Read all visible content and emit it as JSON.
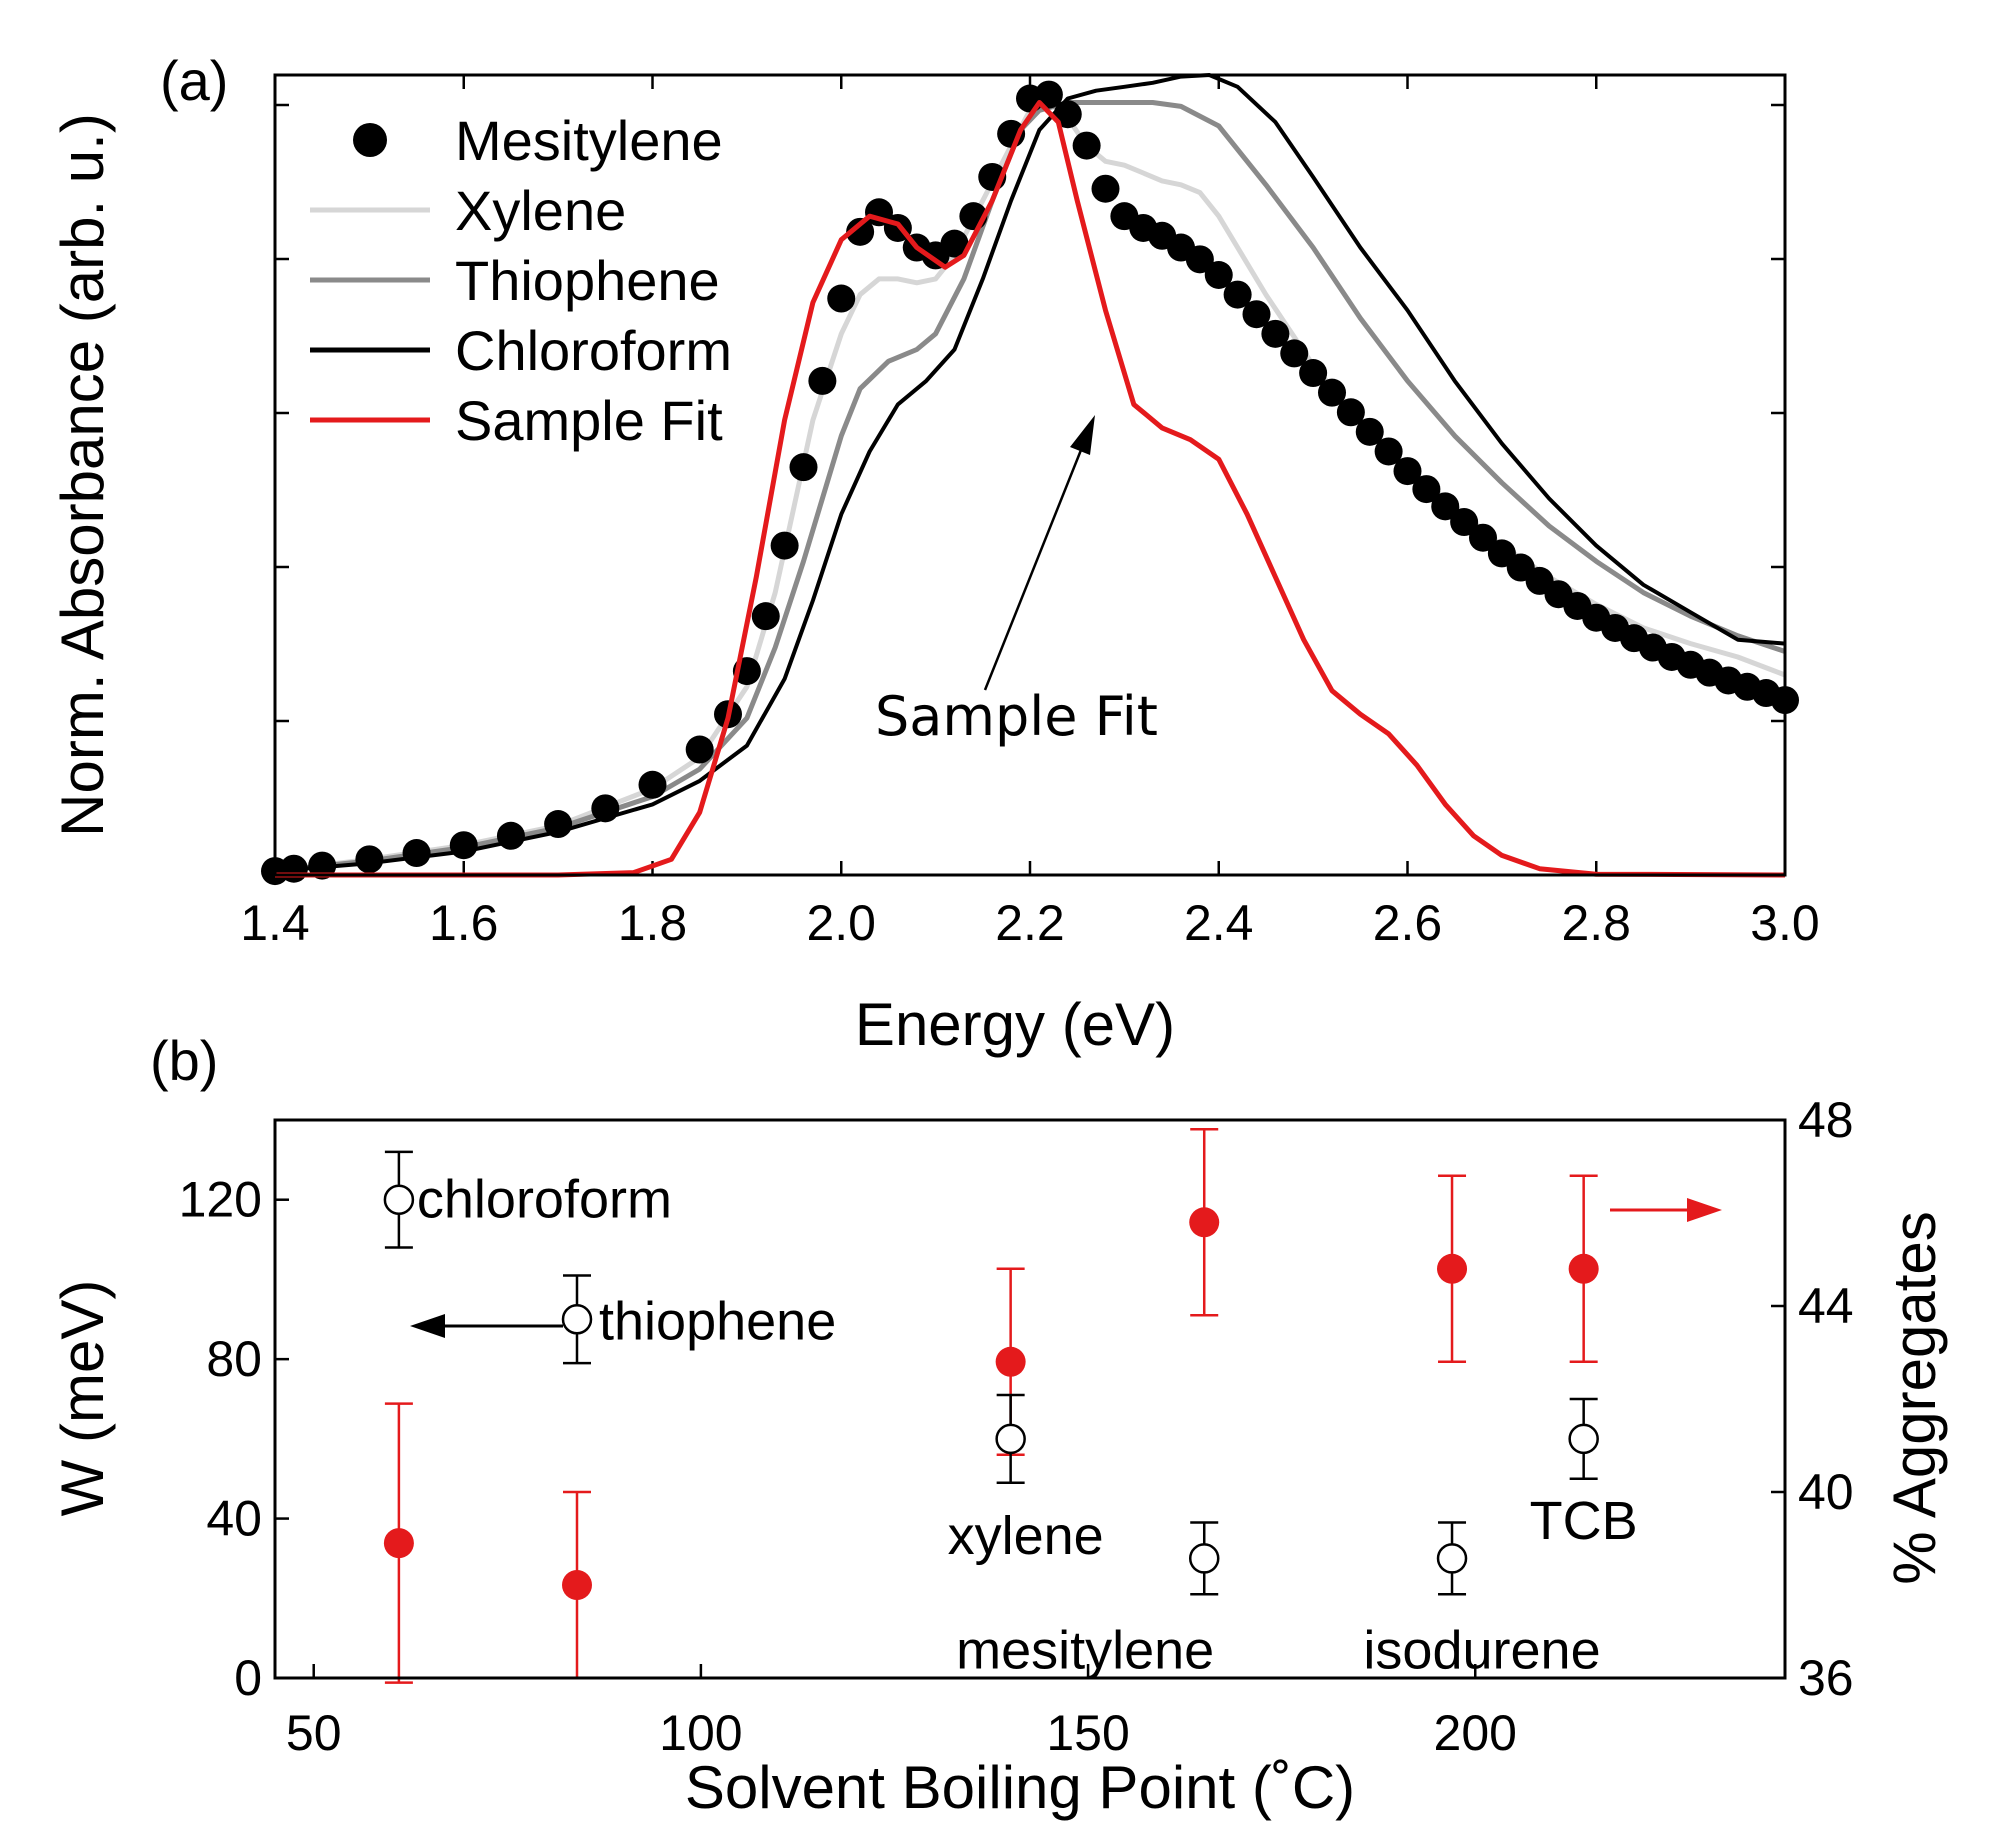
{
  "chart_data": [
    {
      "panel": "(a)",
      "type": "line",
      "xlabel": "Energy (eV)",
      "ylabel": "Norm. Absorbance (arb. u.)",
      "xlim": [
        1.4,
        3.0
      ],
      "ylim": [
        0,
        1.02
      ],
      "xticks": [
        "1.4",
        "1.6",
        "1.8",
        "2.0",
        "2.2",
        "2.4",
        "2.6",
        "2.8",
        "3.0"
      ],
      "legend_position": "top-left",
      "annotation": "Sample Fit",
      "series": [
        {
          "name": "Mesitylene",
          "style": "markers",
          "color": "#000000",
          "points": [
            [
              1.4,
              0.005
            ],
            [
              1.42,
              0.008
            ],
            [
              1.45,
              0.012
            ],
            [
              1.5,
              0.02
            ],
            [
              1.55,
              0.028
            ],
            [
              1.6,
              0.038
            ],
            [
              1.65,
              0.05
            ],
            [
              1.7,
              0.065
            ],
            [
              1.75,
              0.085
            ],
            [
              1.8,
              0.115
            ],
            [
              1.85,
              0.16
            ],
            [
              1.88,
              0.205
            ],
            [
              1.9,
              0.26
            ],
            [
              1.92,
              0.33
            ],
            [
              1.94,
              0.42
            ],
            [
              1.96,
              0.52
            ],
            [
              1.98,
              0.63
            ],
            [
              2.0,
              0.735
            ],
            [
              2.02,
              0.82
            ],
            [
              2.04,
              0.845
            ],
            [
              2.06,
              0.825
            ],
            [
              2.08,
              0.8
            ],
            [
              2.1,
              0.79
            ],
            [
              2.12,
              0.805
            ],
            [
              2.14,
              0.84
            ],
            [
              2.16,
              0.89
            ],
            [
              2.18,
              0.945
            ],
            [
              2.2,
              0.99
            ],
            [
              2.22,
              0.995
            ],
            [
              2.24,
              0.97
            ],
            [
              2.26,
              0.93
            ],
            [
              2.28,
              0.875
            ],
            [
              2.3,
              0.84
            ],
            [
              2.32,
              0.825
            ],
            [
              2.34,
              0.815
            ],
            [
              2.36,
              0.8
            ],
            [
              2.38,
              0.785
            ],
            [
              2.4,
              0.765
            ],
            [
              2.42,
              0.74
            ],
            [
              2.44,
              0.715
            ],
            [
              2.46,
              0.69
            ],
            [
              2.48,
              0.665
            ],
            [
              2.5,
              0.64
            ],
            [
              2.52,
              0.615
            ],
            [
              2.54,
              0.59
            ],
            [
              2.56,
              0.565
            ],
            [
              2.58,
              0.54
            ],
            [
              2.6,
              0.515
            ],
            [
              2.62,
              0.492
            ],
            [
              2.64,
              0.47
            ],
            [
              2.66,
              0.45
            ],
            [
              2.68,
              0.43
            ],
            [
              2.7,
              0.41
            ],
            [
              2.72,
              0.392
            ],
            [
              2.74,
              0.375
            ],
            [
              2.76,
              0.358
            ],
            [
              2.78,
              0.343
            ],
            [
              2.8,
              0.328
            ],
            [
              2.82,
              0.315
            ],
            [
              2.84,
              0.302
            ],
            [
              2.86,
              0.29
            ],
            [
              2.88,
              0.278
            ],
            [
              2.9,
              0.268
            ],
            [
              2.92,
              0.258
            ],
            [
              2.94,
              0.248
            ],
            [
              2.96,
              0.24
            ],
            [
              2.98,
              0.232
            ],
            [
              3.0,
              0.223
            ]
          ]
        },
        {
          "name": "Xylene",
          "style": "line",
          "color": "#d6d6d6",
          "points": [
            [
              1.4,
              0.005
            ],
            [
              1.5,
              0.02
            ],
            [
              1.6,
              0.038
            ],
            [
              1.7,
              0.063
            ],
            [
              1.8,
              0.11
            ],
            [
              1.85,
              0.15
            ],
            [
              1.9,
              0.24
            ],
            [
              1.93,
              0.36
            ],
            [
              1.95,
              0.47
            ],
            [
              1.97,
              0.58
            ],
            [
              2.0,
              0.69
            ],
            [
              2.02,
              0.74
            ],
            [
              2.04,
              0.76
            ],
            [
              2.06,
              0.76
            ],
            [
              2.08,
              0.755
            ],
            [
              2.1,
              0.76
            ],
            [
              2.12,
              0.79
            ],
            [
              2.15,
              0.86
            ],
            [
              2.18,
              0.93
            ],
            [
              2.2,
              0.975
            ],
            [
              2.22,
              0.985
            ],
            [
              2.24,
              0.965
            ],
            [
              2.26,
              0.93
            ],
            [
              2.28,
              0.91
            ],
            [
              2.3,
              0.905
            ],
            [
              2.32,
              0.895
            ],
            [
              2.34,
              0.885
            ],
            [
              2.36,
              0.88
            ],
            [
              2.38,
              0.87
            ],
            [
              2.4,
              0.84
            ],
            [
              2.45,
              0.74
            ],
            [
              2.5,
              0.65
            ],
            [
              2.55,
              0.58
            ],
            [
              2.6,
              0.52
            ],
            [
              2.65,
              0.47
            ],
            [
              2.7,
              0.42
            ],
            [
              2.75,
              0.38
            ],
            [
              2.8,
              0.345
            ],
            [
              2.85,
              0.315
            ],
            [
              2.9,
              0.295
            ],
            [
              2.95,
              0.278
            ],
            [
              3.0,
              0.255
            ]
          ]
        },
        {
          "name": "Thiophene",
          "style": "line",
          "color": "#8a8a8a",
          "points": [
            [
              1.4,
              0.005
            ],
            [
              1.5,
              0.018
            ],
            [
              1.6,
              0.035
            ],
            [
              1.7,
              0.06
            ],
            [
              1.8,
              0.1
            ],
            [
              1.85,
              0.135
            ],
            [
              1.9,
              0.2
            ],
            [
              1.93,
              0.29
            ],
            [
              1.96,
              0.4
            ],
            [
              1.98,
              0.48
            ],
            [
              2.0,
              0.56
            ],
            [
              2.02,
              0.62
            ],
            [
              2.05,
              0.655
            ],
            [
              2.08,
              0.67
            ],
            [
              2.1,
              0.69
            ],
            [
              2.13,
              0.76
            ],
            [
              2.16,
              0.86
            ],
            [
              2.19,
              0.95
            ],
            [
              2.21,
              0.975
            ],
            [
              2.24,
              0.985
            ],
            [
              2.27,
              0.985
            ],
            [
              2.3,
              0.985
            ],
            [
              2.33,
              0.985
            ],
            [
              2.36,
              0.98
            ],
            [
              2.4,
              0.955
            ],
            [
              2.45,
              0.88
            ],
            [
              2.5,
              0.8
            ],
            [
              2.55,
              0.71
            ],
            [
              2.6,
              0.63
            ],
            [
              2.65,
              0.56
            ],
            [
              2.7,
              0.5
            ],
            [
              2.75,
              0.445
            ],
            [
              2.8,
              0.4
            ],
            [
              2.85,
              0.36
            ],
            [
              2.9,
              0.33
            ],
            [
              2.95,
              0.305
            ],
            [
              3.0,
              0.285
            ]
          ]
        },
        {
          "name": "Chloroform",
          "style": "line",
          "color": "#000000",
          "points": [
            [
              1.4,
              0.005
            ],
            [
              1.5,
              0.015
            ],
            [
              1.6,
              0.03
            ],
            [
              1.7,
              0.055
            ],
            [
              1.8,
              0.09
            ],
            [
              1.85,
              0.12
            ],
            [
              1.9,
              0.165
            ],
            [
              1.94,
              0.25
            ],
            [
              1.97,
              0.35
            ],
            [
              2.0,
              0.46
            ],
            [
              2.03,
              0.54
            ],
            [
              2.06,
              0.6
            ],
            [
              2.09,
              0.63
            ],
            [
              2.12,
              0.67
            ],
            [
              2.15,
              0.76
            ],
            [
              2.18,
              0.86
            ],
            [
              2.21,
              0.95
            ],
            [
              2.24,
              0.99
            ],
            [
              2.27,
              1.0
            ],
            [
              2.3,
              1.005
            ],
            [
              2.33,
              1.01
            ],
            [
              2.36,
              1.018
            ],
            [
              2.39,
              1.02
            ],
            [
              2.42,
              1.005
            ],
            [
              2.46,
              0.96
            ],
            [
              2.5,
              0.89
            ],
            [
              2.55,
              0.8
            ],
            [
              2.6,
              0.72
            ],
            [
              2.65,
              0.63
            ],
            [
              2.7,
              0.55
            ],
            [
              2.75,
              0.48
            ],
            [
              2.8,
              0.42
            ],
            [
              2.85,
              0.37
            ],
            [
              2.9,
              0.335
            ],
            [
              2.95,
              0.3
            ],
            [
              3.0,
              0.295
            ]
          ]
        },
        {
          "name": "Sample Fit",
          "style": "line",
          "color": "#e41a1c",
          "points": [
            [
              1.4,
              0.0
            ],
            [
              1.7,
              0.0
            ],
            [
              1.78,
              0.003
            ],
            [
              1.82,
              0.02
            ],
            [
              1.85,
              0.08
            ],
            [
              1.88,
              0.2
            ],
            [
              1.91,
              0.38
            ],
            [
              1.94,
              0.58
            ],
            [
              1.97,
              0.73
            ],
            [
              2.0,
              0.81
            ],
            [
              2.03,
              0.84
            ],
            [
              2.06,
              0.83
            ],
            [
              2.08,
              0.8
            ],
            [
              2.11,
              0.775
            ],
            [
              2.13,
              0.79
            ],
            [
              2.16,
              0.86
            ],
            [
              2.19,
              0.95
            ],
            [
              2.21,
              0.985
            ],
            [
              2.23,
              0.96
            ],
            [
              2.25,
              0.86
            ],
            [
              2.28,
              0.72
            ],
            [
              2.31,
              0.6
            ],
            [
              2.34,
              0.57
            ],
            [
              2.37,
              0.555
            ],
            [
              2.4,
              0.53
            ],
            [
              2.43,
              0.46
            ],
            [
              2.46,
              0.38
            ],
            [
              2.49,
              0.3
            ],
            [
              2.52,
              0.235
            ],
            [
              2.55,
              0.205
            ],
            [
              2.58,
              0.18
            ],
            [
              2.61,
              0.14
            ],
            [
              2.64,
              0.09
            ],
            [
              2.67,
              0.05
            ],
            [
              2.7,
              0.025
            ],
            [
              2.74,
              0.008
            ],
            [
              2.8,
              0.001
            ],
            [
              3.0,
              0.0
            ]
          ]
        }
      ]
    },
    {
      "panel": "(b)",
      "type": "scatter",
      "xlabel": "Solvent Boiling Point (˚C)",
      "ylabel_left": "W (meV)",
      "ylabel_right": "% Aggregates",
      "xlim": [
        45,
        240
      ],
      "ylim_left": [
        0,
        140
      ],
      "ylim_right": [
        36,
        48
      ],
      "xticks": [
        "50",
        "100",
        "150",
        "200"
      ],
      "yticks_left": [
        "0",
        "40",
        "80",
        "120"
      ],
      "yticks_right": [
        "36",
        "40",
        "44",
        "48"
      ],
      "series": [
        {
          "name": "W",
          "axis": "left",
          "marker": "open-circle",
          "color": "#000000",
          "points": [
            {
              "label": "chloroform",
              "x": 61,
              "y": 120,
              "err": 12
            },
            {
              "label": "thiophene",
              "x": 84,
              "y": 90,
              "err": 11
            },
            {
              "label": "xylene",
              "x": 140,
              "y": 60,
              "err": 11
            },
            {
              "label": "mesitylene",
              "x": 165,
              "y": 30,
              "err": 9
            },
            {
              "label": "isodurene",
              "x": 197,
              "y": 30,
              "err": 9
            },
            {
              "label": "TCB",
              "x": 214,
              "y": 60,
              "err": 10
            }
          ]
        },
        {
          "name": "% Aggregates",
          "axis": "right",
          "marker": "filled-circle",
          "color": "#e41a1c",
          "points": [
            {
              "x": 61,
              "y": 38.9,
              "err": 3.0
            },
            {
              "x": 84,
              "y": 38.0,
              "err": 2.0
            },
            {
              "x": 140,
              "y": 42.8,
              "err": 2.0
            },
            {
              "x": 165,
              "y": 45.8,
              "err": 2.0
            },
            {
              "x": 197,
              "y": 44.8,
              "err": 2.0
            },
            {
              "x": 214,
              "y": 44.8,
              "err": 2.0
            }
          ]
        }
      ]
    }
  ]
}
